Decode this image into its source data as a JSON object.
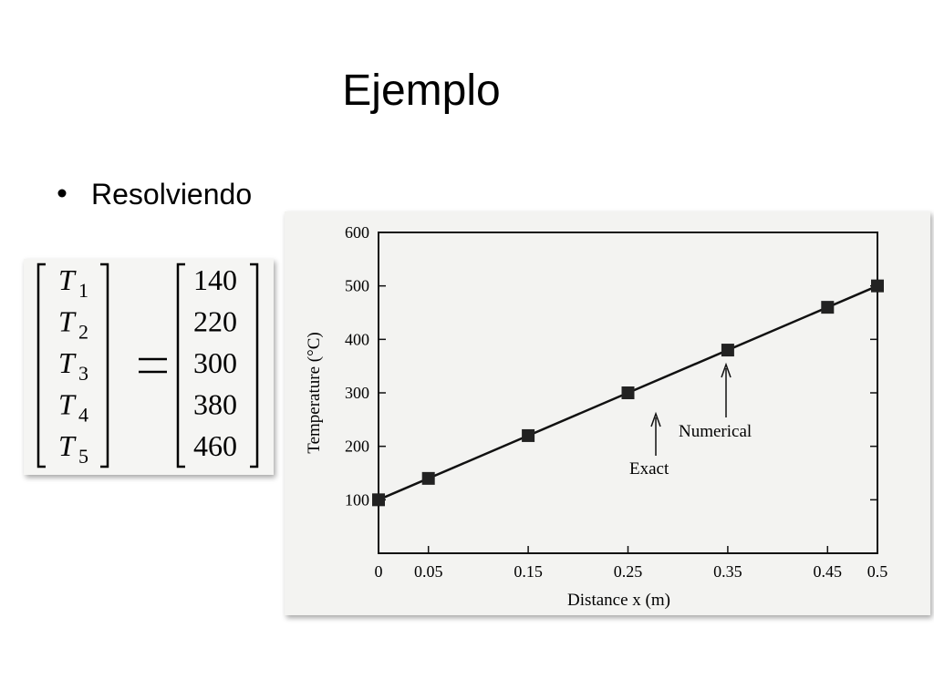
{
  "slide": {
    "title": "Ejemplo",
    "bullet": "Resolviendo"
  },
  "equation": {
    "variable": "T",
    "indices": [
      "1",
      "2",
      "3",
      "4",
      "5"
    ],
    "values": [
      140,
      220,
      300,
      380,
      460
    ]
  },
  "chart": {
    "type": "line",
    "xlabel": "Distance x (m)",
    "ylabel": "Temperature (°C)",
    "xlim": [
      0,
      0.5
    ],
    "ylim": [
      0,
      600
    ],
    "xticks": [
      0,
      0.05,
      0.15,
      0.25,
      0.35,
      0.45,
      0.5
    ],
    "yticks": [
      100,
      200,
      300,
      400,
      500,
      600
    ],
    "series": [
      {
        "name": "Exact",
        "color": "#111111",
        "x": [
          0,
          0.5
        ],
        "values": [
          100,
          500
        ]
      },
      {
        "name": "Numerical",
        "color": "#222222",
        "x": [
          0,
          0.05,
          0.15,
          0.25,
          0.35,
          0.45,
          0.5
        ],
        "values": [
          100,
          140,
          220,
          300,
          380,
          460,
          500
        ]
      }
    ]
  }
}
